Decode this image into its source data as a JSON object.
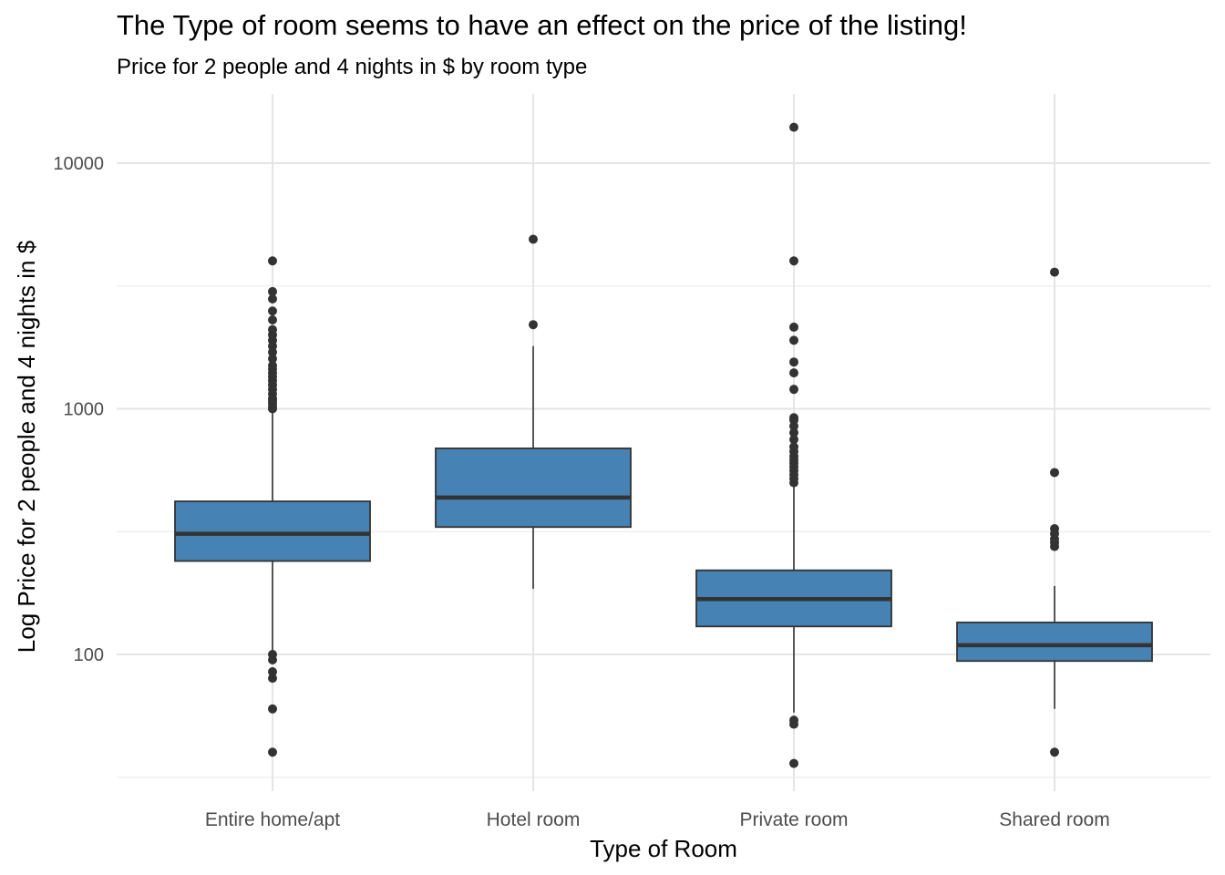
{
  "chart_data": {
    "type": "box",
    "title": "The Type of room seems to have an effect on the price of the listing!",
    "subtitle": "Price for 2 people and 4 nights in $ by room type",
    "xlabel": "Type of Room",
    "ylabel": "Log Price for 2 people and 4 nights in $",
    "yscale": "log10",
    "ylim": [
      30,
      17000
    ],
    "yticks": [
      100,
      1000,
      10000
    ],
    "ytick_labels": [
      "100",
      "1000",
      "10000"
    ],
    "grid": true,
    "fill_color": "#4682B4",
    "line_color": "#333333",
    "categories": [
      "Entire home/apt",
      "Hotel room",
      "Private room",
      "Shared room"
    ],
    "boxes": [
      {
        "category": "Entire home/apt",
        "whisker_low": 102,
        "q1": 240,
        "median": 310,
        "q3": 420,
        "whisker_high": 1000,
        "outliers": [
          40,
          60,
          80,
          85,
          95,
          100,
          1000,
          1020,
          1050,
          1080,
          1100,
          1150,
          1200,
          1250,
          1300,
          1350,
          1400,
          1450,
          1500,
          1600,
          1700,
          1800,
          1900,
          2000,
          2100,
          2300,
          2500,
          2800,
          3000,
          4000
        ]
      },
      {
        "category": "Hotel room",
        "whisker_low": 185,
        "q1": 330,
        "median": 435,
        "q3": 690,
        "whisker_high": 1800,
        "outliers": [
          2200,
          4900
        ]
      },
      {
        "category": "Private room",
        "whisker_low": 58,
        "q1": 130,
        "median": 168,
        "q3": 220,
        "whisker_high": 480,
        "outliers": [
          36,
          52,
          54,
          500,
          520,
          540,
          560,
          580,
          600,
          620,
          640,
          670,
          700,
          750,
          800,
          850,
          900,
          920,
          1200,
          1400,
          1550,
          1900,
          2150,
          4000,
          14000
        ]
      },
      {
        "category": "Shared room",
        "whisker_low": 60,
        "q1": 94,
        "median": 109,
        "q3": 135,
        "whisker_high": 190,
        "outliers": [
          40,
          275,
          285,
          295,
          310,
          325,
          550,
          3600
        ]
      }
    ]
  }
}
